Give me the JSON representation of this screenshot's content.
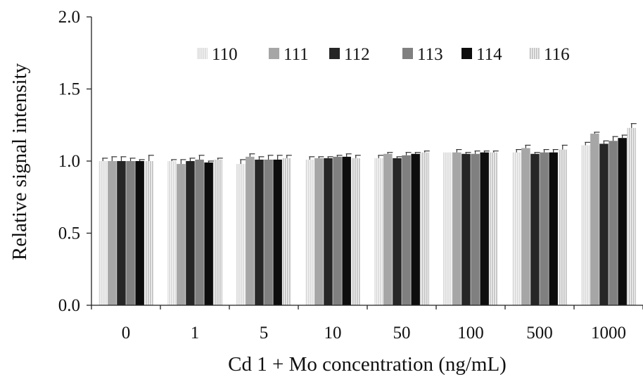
{
  "chart_data": {
    "type": "bar",
    "title": "",
    "xlabel": "Cd 1 + Mo concentration (ng/mL)",
    "ylabel": "Relative signal intensity",
    "ylim": [
      0,
      2.0
    ],
    "yticks": [
      "0.0",
      "0.5",
      "1.0",
      "1.5",
      "2.0"
    ],
    "categories": [
      "0",
      "1",
      "5",
      "10",
      "50",
      "100",
      "500",
      "1000"
    ],
    "legend_position": "top-center",
    "grid": false,
    "series": [
      {
        "name": "110",
        "color": "#d9d9d9",
        "pattern": "vertical-stripe",
        "values": [
          1.0,
          1.0,
          0.98,
          1.01,
          1.02,
          1.06,
          1.06,
          1.11
        ],
        "errors": [
          0.02,
          0.01,
          0.03,
          0.02,
          0.02,
          0.0,
          0.02,
          0.02
        ]
      },
      {
        "name": "111",
        "color": "#a6a6a6",
        "pattern": "solid",
        "values": [
          1.0,
          0.98,
          1.03,
          1.02,
          1.05,
          1.06,
          1.09,
          1.19
        ],
        "errors": [
          0.03,
          0.03,
          0.02,
          0.01,
          0.01,
          0.02,
          0.02,
          0.01
        ]
      },
      {
        "name": "112",
        "color": "#262626",
        "pattern": "solid",
        "values": [
          1.0,
          1.0,
          1.01,
          1.02,
          1.02,
          1.05,
          1.05,
          1.12
        ],
        "errors": [
          0.03,
          0.02,
          0.02,
          0.01,
          0.01,
          0.01,
          0.01,
          0.02
        ]
      },
      {
        "name": "113",
        "color": "#808080",
        "pattern": "solid",
        "values": [
          1.0,
          1.01,
          1.01,
          1.03,
          1.04,
          1.05,
          1.06,
          1.14
        ],
        "errors": [
          0.02,
          0.03,
          0.03,
          0.01,
          0.02,
          0.02,
          0.02,
          0.03
        ]
      },
      {
        "name": "114",
        "color": "#0d0d0d",
        "pattern": "solid",
        "values": [
          1.0,
          0.99,
          1.01,
          1.03,
          1.05,
          1.06,
          1.06,
          1.16
        ],
        "errors": [
          0.01,
          0.01,
          0.03,
          0.02,
          0.01,
          0.01,
          0.02,
          0.02
        ]
      },
      {
        "name": "116",
        "color": "#bfbfbf",
        "pattern": "vertical-stripe",
        "values": [
          1.0,
          1.01,
          1.02,
          1.02,
          1.06,
          1.06,
          1.08,
          1.23
        ],
        "errors": [
          0.04,
          0.01,
          0.02,
          0.02,
          0.01,
          0.01,
          0.03,
          0.03
        ]
      }
    ]
  }
}
